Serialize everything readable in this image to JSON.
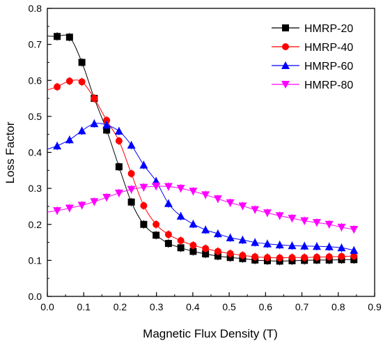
{
  "chart_data": {
    "type": "line",
    "title": "",
    "xlabel": "Magnetic Flux Density (T)",
    "ylabel": "Loss Factor",
    "xlim": [
      0.0,
      0.9
    ],
    "ylim": [
      0.0,
      0.8
    ],
    "xticks": [
      "0.0",
      "0.1",
      "0.2",
      "0.3",
      "0.4",
      "0.5",
      "0.6",
      "0.7",
      "0.8",
      "0.9"
    ],
    "yticks": [
      "0.0",
      "0.1",
      "0.2",
      "0.3",
      "0.4",
      "0.5",
      "0.6",
      "0.7",
      "0.8"
    ],
    "grid": false,
    "legend_position": "top-right",
    "series": [
      {
        "name": "HMRP-20",
        "color": "#000000",
        "marker": "square",
        "x": [
          0.027,
          0.061,
          0.095,
          0.129,
          0.163,
          0.197,
          0.231,
          0.265,
          0.299,
          0.333,
          0.367,
          0.401,
          0.435,
          0.469,
          0.503,
          0.537,
          0.571,
          0.605,
          0.639,
          0.673,
          0.707,
          0.741,
          0.775,
          0.809,
          0.843
        ],
        "y": [
          0.722,
          0.72,
          0.65,
          0.55,
          0.462,
          0.36,
          0.262,
          0.2,
          0.17,
          0.147,
          0.135,
          0.125,
          0.118,
          0.112,
          0.108,
          0.105,
          0.101,
          0.099,
          0.098,
          0.099,
          0.1,
          0.101,
          0.101,
          0.102,
          0.102
        ]
      },
      {
        "name": "HMRP-40",
        "color": "#ff0000",
        "marker": "circle",
        "x": [
          0.027,
          0.061,
          0.095,
          0.129,
          0.163,
          0.197,
          0.231,
          0.265,
          0.299,
          0.333,
          0.367,
          0.401,
          0.435,
          0.469,
          0.503,
          0.537,
          0.571,
          0.605,
          0.639,
          0.673,
          0.707,
          0.741,
          0.775,
          0.809,
          0.843
        ],
        "y": [
          0.582,
          0.598,
          0.596,
          0.55,
          0.489,
          0.432,
          0.341,
          0.252,
          0.2,
          0.172,
          0.155,
          0.142,
          0.133,
          0.125,
          0.119,
          0.114,
          0.11,
          0.108,
          0.107,
          0.108,
          0.108,
          0.109,
          0.11,
          0.111,
          0.112
        ]
      },
      {
        "name": "HMRP-60",
        "color": "#0000ff",
        "marker": "triangle-up",
        "x": [
          0.027,
          0.061,
          0.095,
          0.129,
          0.163,
          0.197,
          0.231,
          0.265,
          0.299,
          0.333,
          0.367,
          0.401,
          0.435,
          0.469,
          0.503,
          0.537,
          0.571,
          0.605,
          0.639,
          0.673,
          0.707,
          0.741,
          0.775,
          0.809,
          0.843
        ],
        "y": [
          0.418,
          0.435,
          0.46,
          0.48,
          0.476,
          0.459,
          0.42,
          0.365,
          0.32,
          0.258,
          0.223,
          0.201,
          0.185,
          0.174,
          0.163,
          0.157,
          0.15,
          0.146,
          0.143,
          0.141,
          0.14,
          0.139,
          0.138,
          0.135,
          0.128
        ]
      },
      {
        "name": "HMRP-80",
        "color": "#ff00ff",
        "marker": "triangle-down",
        "x": [
          0.027,
          0.061,
          0.095,
          0.129,
          0.163,
          0.197,
          0.231,
          0.265,
          0.299,
          0.333,
          0.367,
          0.401,
          0.435,
          0.469,
          0.503,
          0.537,
          0.571,
          0.605,
          0.639,
          0.673,
          0.707,
          0.741,
          0.775,
          0.809,
          0.843
        ],
        "y": [
          0.238,
          0.245,
          0.253,
          0.263,
          0.275,
          0.287,
          0.297,
          0.303,
          0.306,
          0.305,
          0.3,
          0.292,
          0.282,
          0.271,
          0.26,
          0.251,
          0.241,
          0.232,
          0.224,
          0.217,
          0.21,
          0.205,
          0.2,
          0.192,
          0.186
        ]
      }
    ]
  }
}
